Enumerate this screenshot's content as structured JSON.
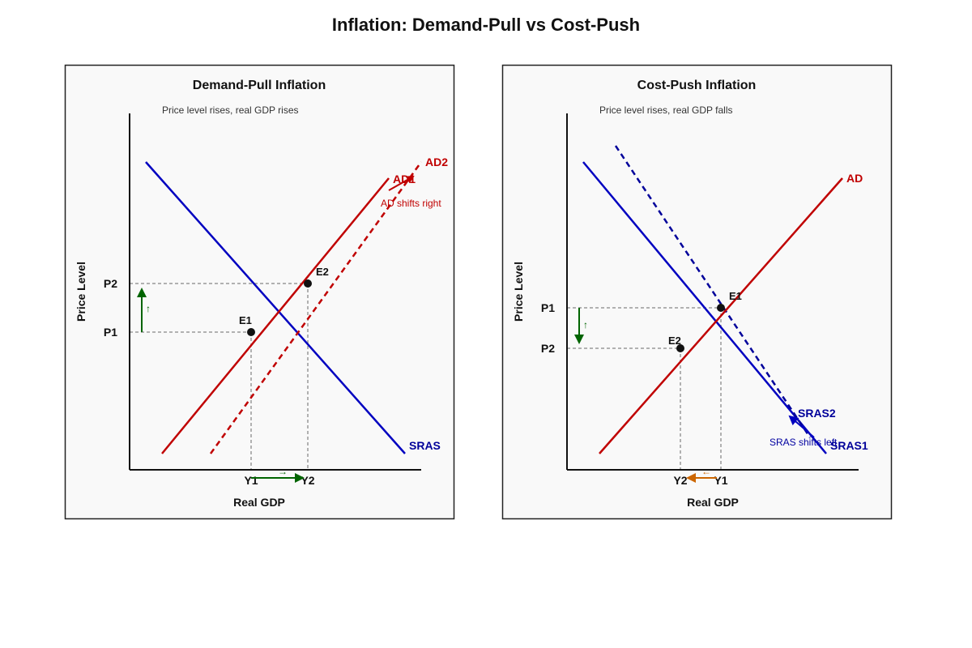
{
  "title": "Inflation: Demand-Pull vs Cost-Push",
  "colors": {
    "ad": "#c00000",
    "sras": "#0000c0",
    "supply_label": "#00009a",
    "arrow_green": "#006400",
    "arrow_orange": "#cc6600",
    "guide": "#999999"
  },
  "demand_pull": {
    "title": "Demand-Pull Inflation",
    "subtitle": "Price level rises, real GDP rises",
    "y_axis": "Price Level",
    "x_axis": "Real GDP",
    "p1": "P1",
    "p2": "P2",
    "y1": "Y1",
    "y2": "Y2",
    "e1": "E1",
    "e2": "E2",
    "sras": "SRAS",
    "ad1": "AD1",
    "ad2": "AD2",
    "shift_note": "AD shifts right",
    "up_mark": "↑",
    "right_mark": "→"
  },
  "cost_push": {
    "title": "Cost-Push Inflation",
    "subtitle": "Price level rises, real GDP falls",
    "y_axis": "Price Level",
    "x_axis": "Real GDP",
    "p1": "P1",
    "p2": "P2",
    "y1": "Y1",
    "y2": "Y2",
    "e1": "E1",
    "e2": "E2",
    "ad": "AD",
    "sras1": "SRAS1",
    "sras2": "SRAS2",
    "shift_note": "SRAS shifts left",
    "up_mark": "↑",
    "left_mark": "←"
  }
}
